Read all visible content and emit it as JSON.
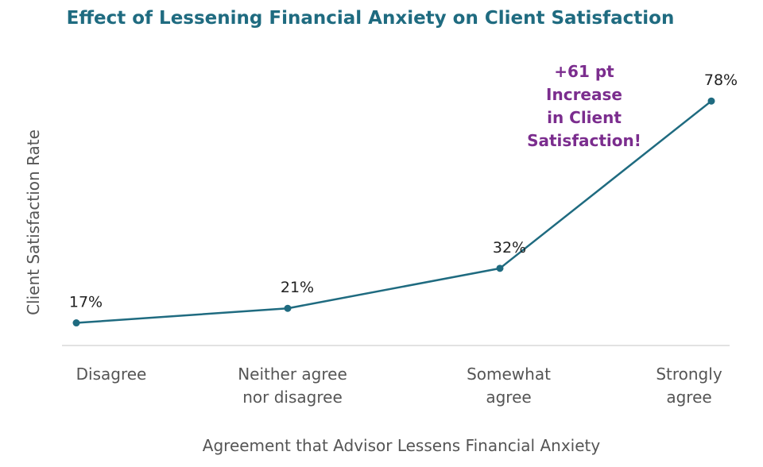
{
  "chart_data": {
    "type": "line",
    "title": "Effect of Lessening Financial Anxiety on Client Satisfaction",
    "xlabel": "Agreement that Advisor Lessens Financial Anxiety",
    "ylabel": "Client Satisfaction Rate",
    "categories": [
      [
        "Disagree"
      ],
      [
        "Neither agree",
        "nor disagree"
      ],
      [
        "Somewhat",
        "agree"
      ],
      [
        "Strongly",
        "agree"
      ]
    ],
    "values": [
      17,
      21,
      32,
      78
    ],
    "data_labels": [
      "17%",
      "21%",
      "32%",
      "78%"
    ],
    "ylim": [
      11,
      87
    ],
    "grid": false,
    "annotation": {
      "lines": [
        "+61 pt",
        "Increase",
        "in Client",
        "Satisfaction!"
      ],
      "near_category": 3
    }
  },
  "colors": {
    "title": "#1f6b80",
    "line": "#1f6b80",
    "annotation": "#7b2d8e",
    "axis": "#d9d9d9"
  }
}
